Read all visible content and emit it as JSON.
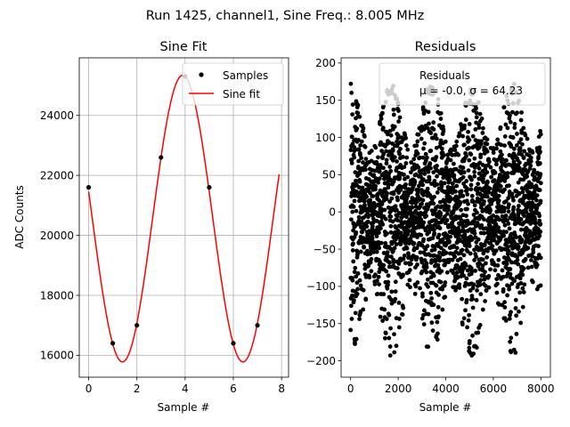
{
  "suptitle": "Run 1425, channel1, Sine Freq.: 8.005 MHz",
  "chart_data": [
    {
      "type": "line",
      "title": "Sine Fit",
      "xlabel": "Sample #",
      "ylabel": "ADC Counts",
      "xlim": [
        -0.39,
        8.29
      ],
      "ylim": [
        15270,
        25920
      ],
      "xticks": [
        0,
        2,
        4,
        6,
        8
      ],
      "yticks": [
        16000,
        18000,
        20000,
        22000,
        24000
      ],
      "grid": true,
      "legend": {
        "placement": "upper right",
        "entries": [
          {
            "label": "Samples",
            "marker": "dot",
            "color": "#000000"
          },
          {
            "label": "Sine fit",
            "marker": "line",
            "color": "#ff0000"
          }
        ]
      },
      "series": [
        {
          "name": "Samples",
          "kind": "scatter",
          "color": "#000000",
          "x": [
            0,
            1,
            2,
            3,
            4,
            5,
            6,
            7
          ],
          "y": [
            21600,
            16400,
            17000,
            22600,
            25300,
            21600,
            16400,
            17000
          ]
        },
        {
          "name": "Sine fit",
          "kind": "line",
          "color": "#ff0000",
          "model": {
            "offset": 20560,
            "amplitude": 4780,
            "period": 5.0,
            "peak_x": 3.9,
            "x_range": [
              0,
              7.9
            ]
          }
        }
      ]
    },
    {
      "type": "scatter",
      "title": "Residuals",
      "xlabel": "Sample #",
      "ylabel": "",
      "xlim": [
        -400,
        8400
      ],
      "ylim": [
        -222,
        207
      ],
      "xticks": [
        0,
        2000,
        4000,
        6000,
        8000
      ],
      "yticks": [
        -200,
        -150,
        -100,
        -50,
        0,
        50,
        100,
        150,
        200
      ],
      "grid": false,
      "legend": {
        "placement": "upper right",
        "lines": [
          "Residuals",
          "μ = -0.0, σ = 64.23"
        ]
      },
      "stats": {
        "mu": -0.0,
        "sigma": 64.23,
        "n_points": 8192
      },
      "series": [
        {
          "name": "Residuals",
          "color": "#000000",
          "envelope": {
            "peak_spread": 175,
            "trough_spread": 85,
            "period": 1700,
            "x_range": [
              0,
              8000
            ]
          }
        }
      ]
    }
  ]
}
